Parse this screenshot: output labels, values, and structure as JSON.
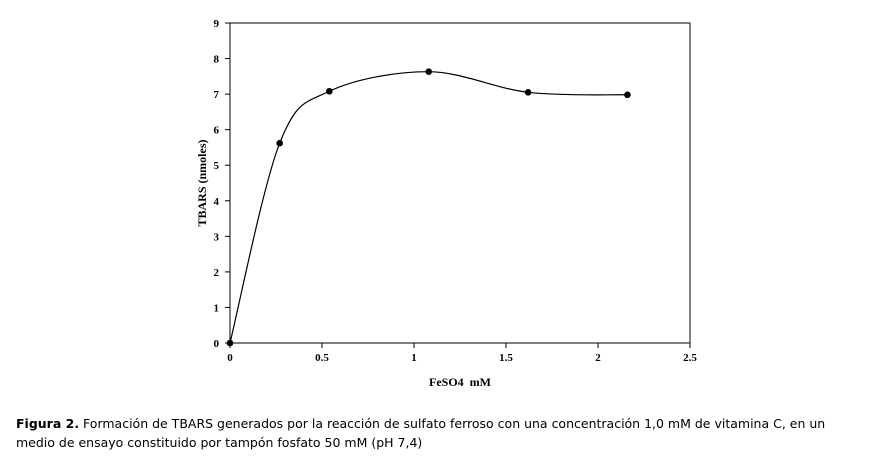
{
  "chart_data": {
    "type": "line",
    "xlabel": "FeSO4  mM",
    "ylabel": "TBARS (nmoles)",
    "xlim": [
      0,
      2.5
    ],
    "ylim": [
      0,
      9
    ],
    "x_ticks": [
      0,
      0.5,
      1,
      1.5,
      2,
      2.5
    ],
    "x_tick_labels": [
      "0",
      "0.5",
      "1",
      "1.5",
      "2",
      "2.5"
    ],
    "y_ticks": [
      0,
      1,
      2,
      3,
      4,
      5,
      6,
      7,
      8,
      9
    ],
    "y_tick_labels": [
      "0",
      "1",
      "2",
      "3",
      "4",
      "5",
      "6",
      "7",
      "8",
      "9"
    ],
    "grid": false,
    "legend": "none",
    "smooth": true,
    "series": [
      {
        "x": [
          0,
          0.27,
          0.54,
          1.08,
          1.62,
          2.16
        ],
        "y": [
          0,
          5.62,
          7.08,
          7.63,
          7.05,
          6.98
        ],
        "color": "#000000"
      }
    ]
  },
  "caption": {
    "label": "Figura 2.",
    "text": " Formación de TBARS generados por la reacción de sulfato ferroso con una concentración 1,0 mM de vitamina C, en un medio de ensayo constituido por tampón fosfato 50 mM (pH 7,4)"
  }
}
